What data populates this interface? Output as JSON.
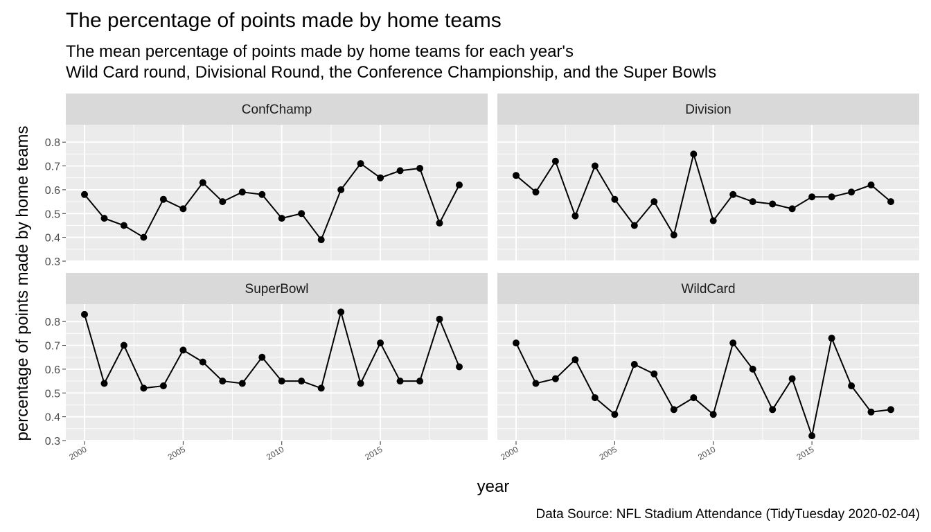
{
  "title": "The percentage of points made by home teams",
  "subtitle_lines": [
    "The mean percentage of points made by home teams for each year's",
    "Wild Card round, Divisional Round, the Conference Championship, and the Super Bowls"
  ],
  "caption": "Data Source: NFL Stadium Attendance (TidyTuesday 2020-02-04)",
  "chart_data": {
    "type": "line",
    "facet": "wrap",
    "xlabel": "year",
    "ylabel": "percentage of points made by home teams",
    "xlim": [
      2000,
      2019
    ],
    "ylim": [
      0.3,
      0.85
    ],
    "x_ticks": [
      2000,
      2005,
      2010,
      2015
    ],
    "x_tick_labels": [
      "2000",
      "2005",
      "2010",
      "2015"
    ],
    "y_ticks": [
      0.3,
      0.4,
      0.5,
      0.6,
      0.7,
      0.8
    ],
    "y_tick_labels": [
      "0.3",
      "0.4",
      "0.5",
      "0.6",
      "0.7",
      "0.8"
    ],
    "grid": true,
    "line_color": "#000000",
    "panel_bg": "#ebebeb",
    "strip_bg": "#d9d9d9",
    "x": [
      2000,
      2001,
      2002,
      2003,
      2004,
      2005,
      2006,
      2007,
      2008,
      2009,
      2010,
      2011,
      2012,
      2013,
      2014,
      2015,
      2016,
      2017,
      2018,
      2019
    ],
    "series": [
      {
        "name": "ConfChamp",
        "values": [
          0.58,
          0.48,
          0.45,
          0.4,
          0.56,
          0.52,
          0.63,
          0.55,
          0.59,
          0.58,
          0.48,
          0.5,
          0.39,
          0.6,
          0.71,
          0.65,
          0.68,
          0.69,
          0.46,
          0.62
        ]
      },
      {
        "name": "Division",
        "values": [
          0.66,
          0.59,
          0.72,
          0.49,
          0.7,
          0.56,
          0.45,
          0.55,
          0.41,
          0.75,
          0.47,
          0.58,
          0.55,
          0.54,
          0.52,
          0.57,
          0.57,
          0.59,
          0.62,
          0.55
        ]
      },
      {
        "name": "SuperBowl",
        "values": [
          0.83,
          0.54,
          0.7,
          0.52,
          0.53,
          0.68,
          0.63,
          0.55,
          0.54,
          0.65,
          0.55,
          0.55,
          0.52,
          0.84,
          0.54,
          0.71,
          0.55,
          0.55,
          0.81,
          0.61
        ]
      },
      {
        "name": "WildCard",
        "values": [
          0.71,
          0.54,
          0.56,
          0.64,
          0.48,
          0.41,
          0.62,
          0.58,
          0.43,
          0.48,
          0.41,
          0.71,
          0.6,
          0.43,
          0.56,
          0.32,
          0.73,
          0.53,
          0.42,
          0.43
        ]
      }
    ]
  }
}
